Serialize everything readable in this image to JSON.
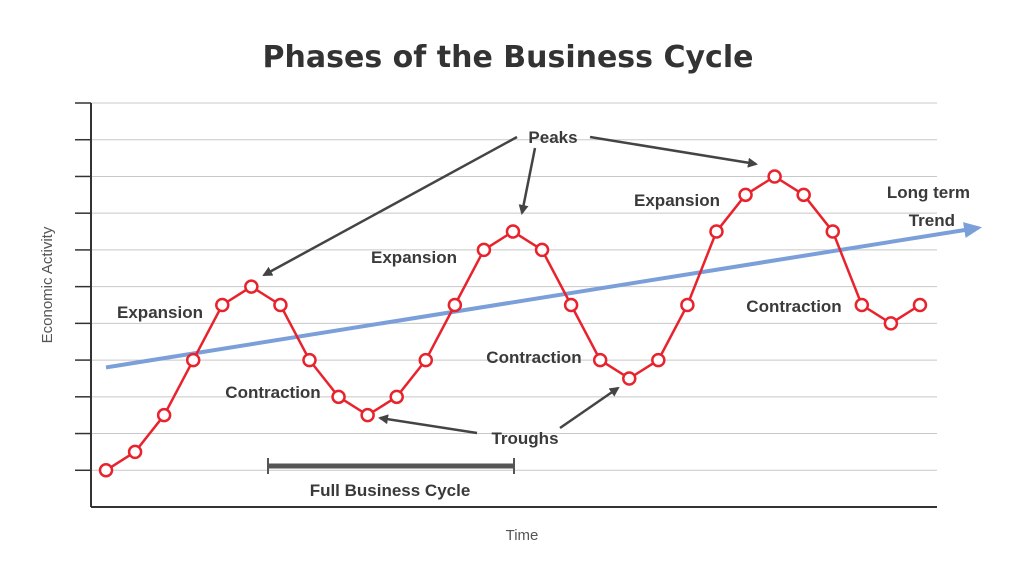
{
  "chart_data": {
    "type": "line",
    "title": "Phases of the Business Cycle",
    "xlabel": "Time",
    "ylabel": "Economic Activity",
    "x": [
      1,
      2,
      3,
      4,
      5,
      6,
      7,
      8,
      9,
      10,
      11,
      12,
      13,
      14,
      15,
      16,
      17,
      18,
      19,
      20,
      21,
      22,
      23,
      24,
      25,
      26,
      27,
      28,
      29
    ],
    "series": [
      {
        "values": [
          1,
          1.5,
          2.5,
          4,
          5.5,
          6,
          5.5,
          4,
          3,
          2.5,
          3,
          4,
          5.5,
          7,
          7.5,
          7,
          5.5,
          4,
          3.5,
          4,
          5.5,
          7.5,
          8.5,
          9,
          8.5,
          7.5,
          5.5,
          5,
          5.5
        ]
      }
    ],
    "trend": {
      "start": [
        1,
        3.8
      ],
      "end": [
        31,
        7.6
      ]
    },
    "ylim": [
      0,
      11
    ],
    "xlim": [
      1,
      30
    ],
    "grid": true,
    "annotations": {
      "peaks": "Peaks",
      "troughs": "Troughs",
      "expansion_1": "Expansion",
      "expansion_2": "Expansion",
      "expansion_3": "Expansion",
      "contraction_1": "Contraction",
      "contraction_2": "Contraction",
      "contraction_3": "Contraction",
      "trend_line1": "Long term",
      "trend_line2": "Trend",
      "full_cycle": "Full Business Cycle"
    },
    "colors": {
      "cycle": "#e8232d",
      "trend": "#7b9fd9",
      "grid": "#c8c8c8",
      "axis": "#333333",
      "arrow": "#444444"
    }
  }
}
